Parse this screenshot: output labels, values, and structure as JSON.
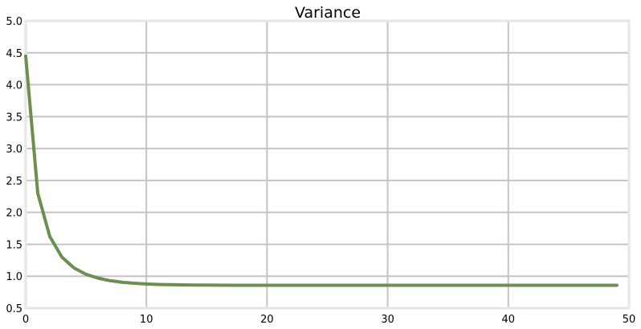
{
  "chart_data": {
    "type": "line",
    "title": "Variance",
    "xlabel": "",
    "ylabel": "",
    "xlim": [
      0,
      50
    ],
    "ylim": [
      0.5,
      5.0
    ],
    "x_ticks": [
      0,
      10,
      20,
      30,
      40,
      50
    ],
    "y_ticks": [
      0.5,
      1.0,
      1.5,
      2.0,
      2.5,
      3.0,
      3.5,
      4.0,
      4.5,
      5.0
    ],
    "grid": true,
    "legend": "none",
    "colors": {
      "line": "#6a8f4e",
      "grid": "#c4c4c4",
      "frame": "#e6e6e6"
    },
    "series": [
      {
        "x": [
          0,
          1,
          2,
          3,
          4,
          5,
          6,
          7,
          8,
          9,
          10,
          11,
          12,
          13,
          14,
          15,
          16,
          17,
          18,
          19,
          20,
          21,
          22,
          23,
          24,
          25,
          26,
          27,
          28,
          29,
          30,
          31,
          32,
          33,
          34,
          35,
          36,
          37,
          38,
          39,
          40,
          41,
          42,
          43,
          44,
          45,
          46,
          47,
          48,
          49
        ],
        "values": [
          4.45,
          2.3,
          1.62,
          1.3,
          1.13,
          1.03,
          0.97,
          0.93,
          0.905,
          0.89,
          0.878,
          0.871,
          0.867,
          0.864,
          0.862,
          0.861,
          0.86,
          0.859,
          0.859,
          0.858,
          0.858,
          0.858,
          0.858,
          0.858,
          0.858,
          0.858,
          0.858,
          0.858,
          0.858,
          0.858,
          0.858,
          0.858,
          0.858,
          0.858,
          0.858,
          0.858,
          0.858,
          0.858,
          0.858,
          0.858,
          0.858,
          0.858,
          0.858,
          0.858,
          0.858,
          0.858,
          0.858,
          0.858,
          0.858,
          0.858
        ]
      }
    ]
  }
}
